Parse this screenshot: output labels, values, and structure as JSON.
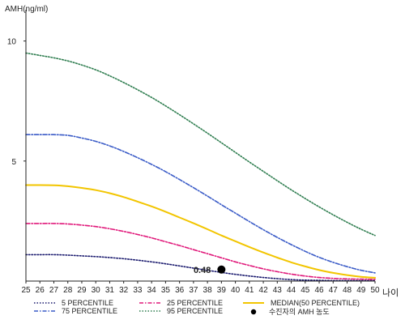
{
  "chart_data": {
    "type": "line",
    "ylabel": "AMH(ng/ml)",
    "xlabel": "나이",
    "x": [
      25,
      26,
      27,
      28,
      29,
      30,
      31,
      32,
      33,
      34,
      35,
      36,
      37,
      38,
      39,
      40,
      41,
      42,
      43,
      44,
      45,
      46,
      47,
      48,
      49,
      50
    ],
    "xlim": [
      25,
      50
    ],
    "ylim": [
      0,
      11
    ],
    "yticks": [
      5,
      10
    ],
    "grid": false,
    "legend_position": "bottom",
    "series": [
      {
        "name": "5 PERCENTILE",
        "color": "#1a1a6e",
        "style": "dotted",
        "values": [
          1.1,
          1.1,
          1.1,
          1.08,
          1.05,
          1.02,
          0.98,
          0.93,
          0.87,
          0.8,
          0.72,
          0.63,
          0.54,
          0.45,
          0.36,
          0.28,
          0.21,
          0.15,
          0.1,
          0.06,
          0.04,
          0.03,
          0.02,
          0.02,
          0.02,
          0.02
        ]
      },
      {
        "name": "25 PERCENTILE",
        "color": "#e0187a",
        "style": "dashdot",
        "values": [
          2.4,
          2.4,
          2.4,
          2.38,
          2.33,
          2.27,
          2.18,
          2.07,
          1.94,
          1.8,
          1.64,
          1.48,
          1.31,
          1.14,
          0.97,
          0.8,
          0.65,
          0.51,
          0.39,
          0.29,
          0.21,
          0.15,
          0.11,
          0.09,
          0.08,
          0.07
        ]
      },
      {
        "name": "MEDIAN(50 PERCENTILE)",
        "color": "#f2c500",
        "style": "solid",
        "values": [
          4.0,
          4.0,
          3.99,
          3.95,
          3.88,
          3.79,
          3.66,
          3.5,
          3.31,
          3.11,
          2.89,
          2.65,
          2.41,
          2.16,
          1.9,
          1.66,
          1.42,
          1.19,
          0.98,
          0.78,
          0.61,
          0.46,
          0.34,
          0.25,
          0.18,
          0.14
        ]
      },
      {
        "name": "75 PERCENTILE",
        "color": "#3a5bc7",
        "style": "dashdot",
        "values": [
          6.1,
          6.1,
          6.1,
          6.07,
          5.96,
          5.82,
          5.63,
          5.4,
          5.14,
          4.86,
          4.56,
          4.23,
          3.89,
          3.54,
          3.18,
          2.83,
          2.48,
          2.14,
          1.82,
          1.52,
          1.24,
          0.99,
          0.78,
          0.6,
          0.45,
          0.34
        ]
      },
      {
        "name": "95 PERCENTILE",
        "color": "#2e7d4f",
        "style": "dotted",
        "values": [
          9.5,
          9.4,
          9.3,
          9.17,
          9.0,
          8.8,
          8.55,
          8.27,
          7.97,
          7.65,
          7.3,
          6.93,
          6.55,
          6.16,
          5.76,
          5.36,
          4.96,
          4.57,
          4.18,
          3.8,
          3.44,
          3.09,
          2.76,
          2.45,
          2.16,
          1.9
        ]
      }
    ],
    "highlight_point": {
      "name": "수진자의 AMH 농도",
      "x": 39,
      "y": 0.48,
      "label": "0.48",
      "color": "#000000"
    }
  }
}
